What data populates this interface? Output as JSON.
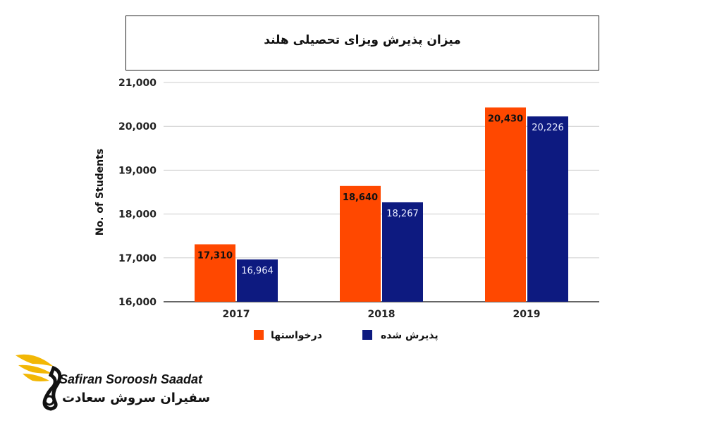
{
  "chart_data": {
    "type": "bar",
    "title": "میزان پذیرش ویزای تحصیلی هلند",
    "categories": [
      "2017",
      "2018",
      "2019"
    ],
    "series": [
      {
        "name": "درخواستها",
        "values": [
          17310,
          18640,
          20430
        ],
        "color": "#ff4800"
      },
      {
        "name": "پذیرش شده",
        "values": [
          16964,
          18267,
          20226
        ],
        "color": "#0d1a80"
      }
    ],
    "data_labels": [
      [
        "17,310",
        "18,640",
        "20,430"
      ],
      [
        "16,964",
        "18,267",
        "20,226"
      ]
    ],
    "xlabel": "",
    "ylabel": "No. of Students",
    "ylim": [
      16000,
      21000
    ],
    "yticks": [
      16000,
      17000,
      18000,
      19000,
      20000,
      21000
    ],
    "ytick_labels": [
      "16,000",
      "17,000",
      "18,000",
      "19,000",
      "20,000",
      "21,000"
    ],
    "grid": true,
    "legend_position": "bottom"
  },
  "logo": {
    "name_en": "Safiran Soroosh Saadat",
    "name_fa": "سفیران سروش سعادت"
  },
  "colors": {
    "gridline": "#cccccc",
    "axis": "#333333",
    "text": "#222222",
    "logo_gold": "#f2b705"
  }
}
